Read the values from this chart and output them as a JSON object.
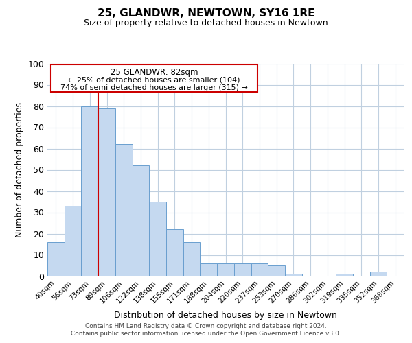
{
  "title": "25, GLANDWR, NEWTOWN, SY16 1RE",
  "subtitle": "Size of property relative to detached houses in Newtown",
  "xlabel": "Distribution of detached houses by size in Newtown",
  "ylabel": "Number of detached properties",
  "bar_color": "#c5d9f0",
  "bar_edge_color": "#6a9fcf",
  "background_color": "#ffffff",
  "grid_color": "#c0d0e0",
  "annotation_line_color": "#cc0000",
  "annotation_box_color": "#cc0000",
  "bin_labels": [
    "40sqm",
    "56sqm",
    "73sqm",
    "89sqm",
    "106sqm",
    "122sqm",
    "138sqm",
    "155sqm",
    "171sqm",
    "188sqm",
    "204sqm",
    "220sqm",
    "237sqm",
    "253sqm",
    "270sqm",
    "286sqm",
    "302sqm",
    "319sqm",
    "335sqm",
    "352sqm",
    "368sqm"
  ],
  "bar_values": [
    16,
    33,
    80,
    79,
    62,
    52,
    35,
    22,
    16,
    6,
    6,
    6,
    6,
    5,
    1,
    0,
    0,
    1,
    0,
    2,
    0
  ],
  "annotation_text_line1": "25 GLANDWR: 82sqm",
  "annotation_text_line2": "← 25% of detached houses are smaller (104)",
  "annotation_text_line3": "74% of semi-detached houses are larger (315) →",
  "ylim": [
    0,
    100
  ],
  "yticks": [
    0,
    10,
    20,
    30,
    40,
    50,
    60,
    70,
    80,
    90,
    100
  ],
  "footer1": "Contains HM Land Registry data © Crown copyright and database right 2024.",
  "footer2": "Contains public sector information licensed under the Open Government Licence v3.0."
}
